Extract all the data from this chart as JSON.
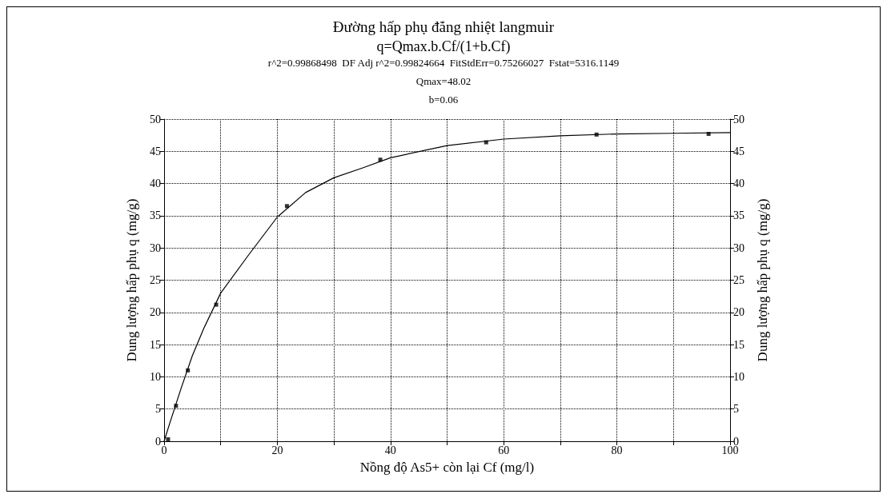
{
  "chart_data": {
    "type": "scatter",
    "title": "Đường hấp phụ đẳng nhiệt langmuir",
    "subtitle": "q=Qmax.b.Cf/(1+b.Cf)",
    "annotations": [
      "r^2=0.99868498  DF Adj r^2=0.99824664  FitStdErr=0.75266027  Fstat=5316.1149",
      "Qmax=48.02",
      "b=0.06"
    ],
    "xlabel": "Nồng độ As5+ còn lại Cf (mg/l)",
    "ylabel": "Dung lượng hấp phụ q (mg/g)",
    "y2label": "Dung lượng hấp phụ q (mg/g)",
    "series": [
      {
        "marker": "square",
        "color": "#000000",
        "x": [
          0.7,
          2.1,
          4.2,
          9.2,
          21.7,
          38.2,
          56.9,
          76.4,
          96.2
        ],
        "values": [
          0.3,
          5.5,
          11.0,
          21.2,
          36.5,
          43.7,
          46.4,
          47.6,
          47.7
        ]
      },
      {
        "type": "line",
        "marker": "none",
        "line_style": "solid",
        "color": "#000000",
        "x": [
          0,
          1,
          2,
          3,
          5,
          7,
          10,
          15,
          20,
          25,
          30,
          35,
          40,
          50,
          60,
          70,
          80,
          90,
          100
        ],
        "values": [
          0,
          2.8,
          5.5,
          8.2,
          13.3,
          17.5,
          23.0,
          29.0,
          34.8,
          38.6,
          40.9,
          42.4,
          44.0,
          45.9,
          46.9,
          47.4,
          47.7,
          47.8,
          47.9
        ]
      }
    ],
    "xlim": [
      0,
      100
    ],
    "xticks": [
      0,
      {
        "value": 10,
        "label": null
      },
      20,
      {
        "value": 30,
        "label": null
      },
      40,
      {
        "value": 50,
        "label": null
      },
      60,
      {
        "value": 70,
        "label": null
      },
      80,
      {
        "value": 90,
        "label": null
      },
      100
    ],
    "ylim": [
      0,
      50
    ],
    "yticks": [
      0,
      5,
      10,
      15,
      20,
      25,
      30,
      35,
      40,
      45,
      50
    ],
    "y2lim": [
      0,
      50
    ],
    "y2ticks": [
      0,
      5,
      10,
      15,
      20,
      25,
      30,
      35,
      40,
      45,
      50
    ],
    "grid": true
  }
}
